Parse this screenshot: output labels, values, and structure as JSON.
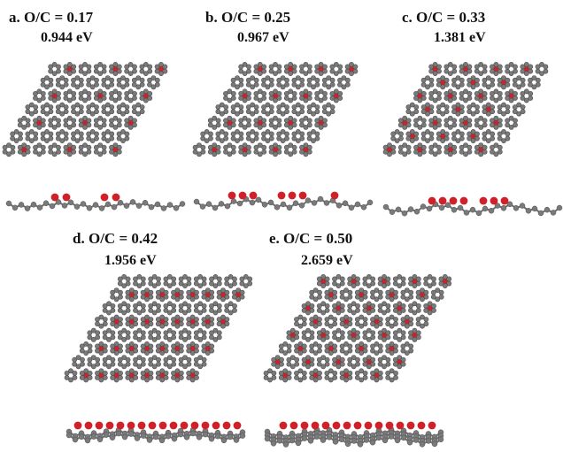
{
  "panels": [
    {
      "id": "a",
      "label": "a.",
      "ratio": "O/C = 0.17",
      "energy": "0.944 eV"
    },
    {
      "id": "b",
      "label": "b.",
      "ratio": "O/C = 0.25",
      "energy": "0.967 eV"
    },
    {
      "id": "c",
      "label": "c.",
      "ratio": "O/C = 0.33",
      "energy": "1.381 eV"
    },
    {
      "id": "d",
      "label": "d.",
      "ratio": "O/C = 0.42",
      "energy": "1.956 eV"
    },
    {
      "id": "e",
      "label": "e.",
      "ratio": "O/C = 0.50",
      "energy": "2.659 eV"
    }
  ],
  "colors": {
    "carbon": "#7a7a7a",
    "carbon_edge": "#4f4f4f",
    "oxygen": "#d0202a",
    "bond": "#6e6e6e"
  }
}
